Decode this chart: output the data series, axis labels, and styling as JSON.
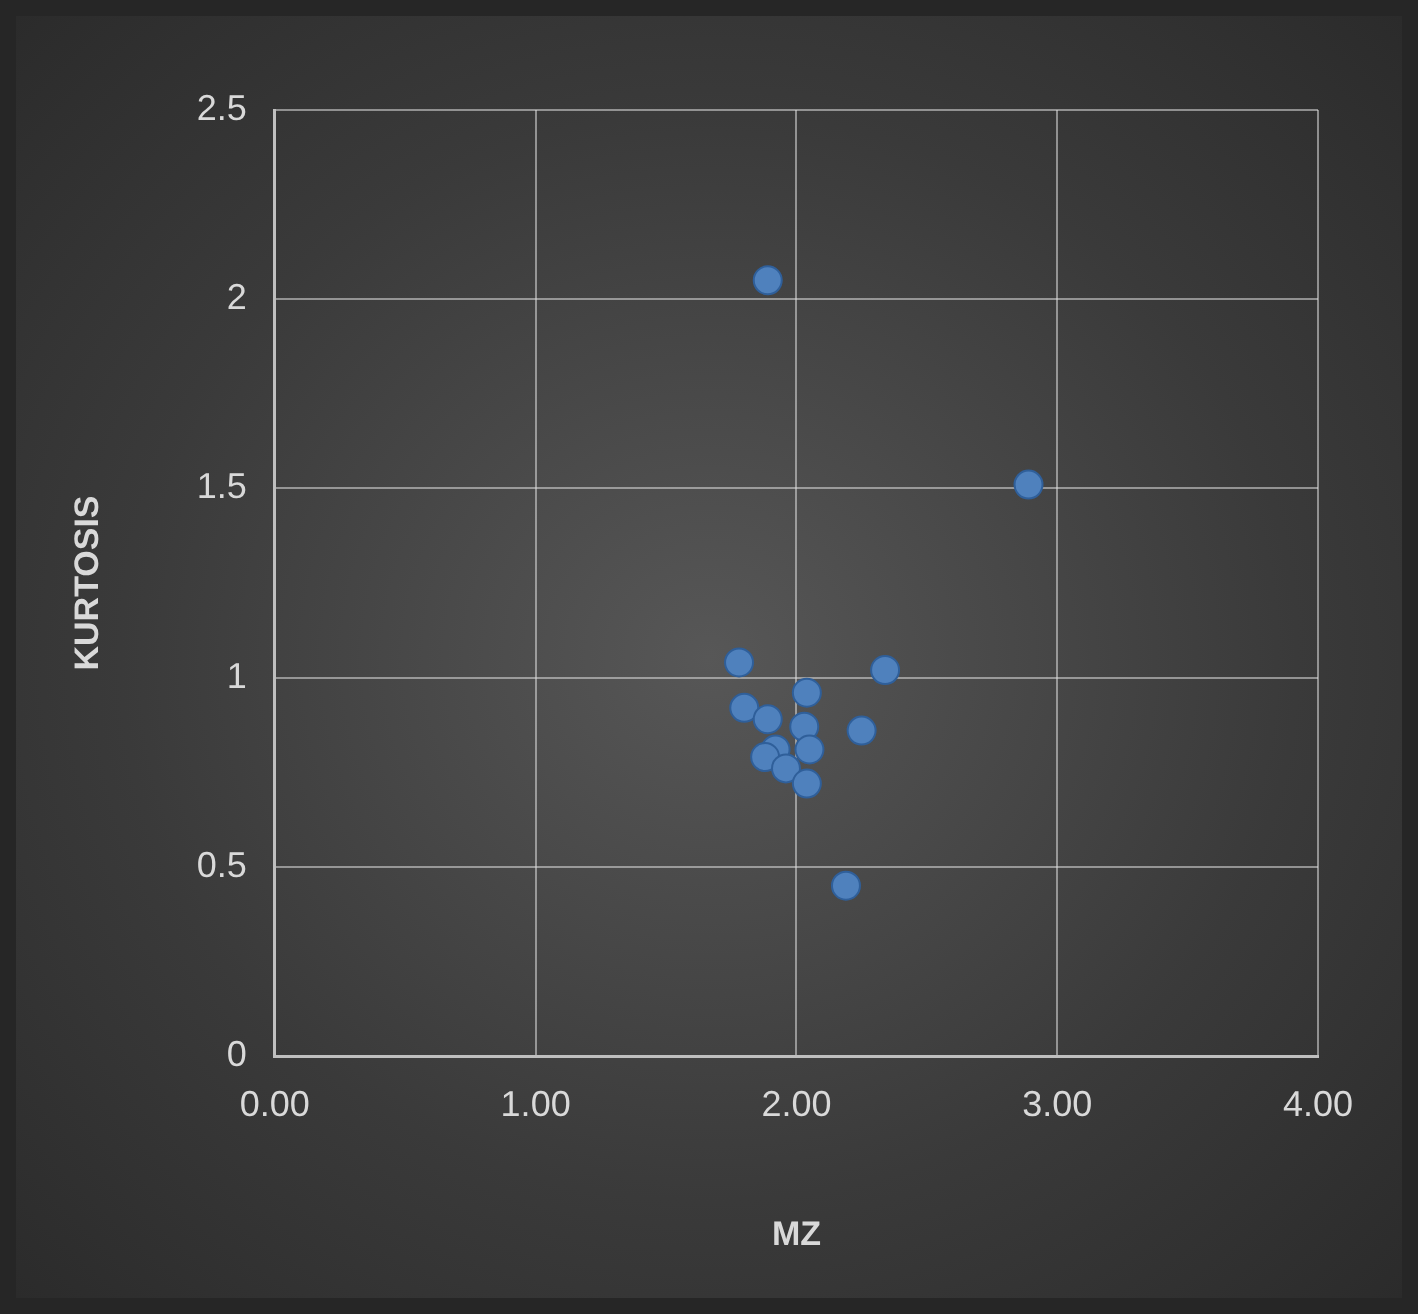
{
  "chart_data": {
    "type": "scatter",
    "xlabel": "MZ",
    "ylabel": "KURTOSIS",
    "x": [
      1.89,
      2.89,
      1.78,
      2.34,
      2.04,
      1.8,
      1.89,
      2.03,
      2.25,
      1.92,
      2.05,
      1.88,
      1.96,
      2.04,
      2.19
    ],
    "values": [
      2.05,
      1.51,
      1.04,
      1.02,
      0.96,
      0.92,
      0.89,
      0.87,
      0.86,
      0.81,
      0.81,
      0.79,
      0.76,
      0.72,
      0.45
    ],
    "color": "#4f81bd",
    "marker": "circle",
    "xlim": [
      0,
      4
    ],
    "xticks": [
      {
        "value": 0,
        "label": "0.00"
      },
      {
        "value": 1,
        "label": "1.00"
      },
      {
        "value": 2,
        "label": "2.00"
      },
      {
        "value": 3,
        "label": "3.00"
      },
      {
        "value": 4,
        "label": "4.00"
      }
    ],
    "ylim": [
      0,
      2.5
    ],
    "yticks": [
      0,
      0.5,
      1,
      1.5,
      2,
      2.5
    ],
    "grid": true,
    "legend": false
  }
}
